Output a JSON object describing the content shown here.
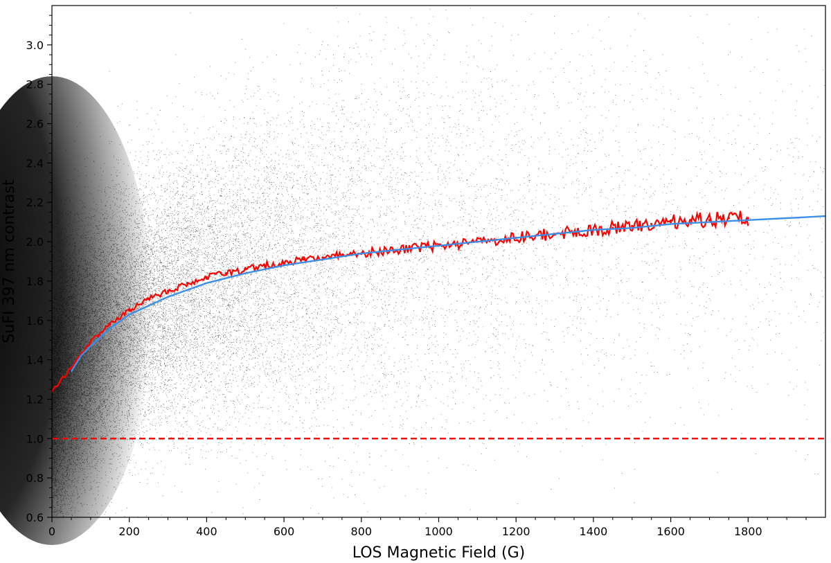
{
  "chart_data": {
    "type": "scatter",
    "title": "",
    "xlabel": "LOS Magnetic Field (G)",
    "ylabel": "SuFI 397 nm contrast",
    "xlim": [
      0,
      2000
    ],
    "ylim": [
      0.6,
      3.2
    ],
    "xticks": [
      0,
      200,
      400,
      600,
      800,
      1000,
      1200,
      1400,
      1600,
      1800
    ],
    "xtick_labels": [
      "0",
      "200",
      "400",
      "600",
      "800",
      "1000",
      "1200",
      "1400",
      "1600",
      "1800"
    ],
    "yticks": [
      0.6,
      0.8,
      1.0,
      1.2,
      1.4,
      1.6,
      1.8,
      2.0,
      2.2,
      2.4,
      2.6,
      2.8,
      3.0
    ],
    "ytick_labels": [
      "0.6",
      "0.8",
      "1.0",
      "1.2",
      "1.4",
      "1.6",
      "1.8",
      "2.0",
      "2.2",
      "2.4",
      "2.6",
      "2.8",
      "3.0"
    ],
    "grid": false,
    "legend": "none",
    "series": [
      {
        "kind": "scatter-cloud",
        "color": "#000000",
        "density_x": [
          0,
          50,
          100,
          200,
          300,
          400,
          600,
          800,
          1000,
          1200,
          1400,
          1600,
          1800,
          2000
        ],
        "density_weight": [
          10,
          9,
          8,
          6,
          4.5,
          3.4,
          2.2,
          1.5,
          1.05,
          0.75,
          0.55,
          0.42,
          0.32,
          0.25
        ]
      },
      {
        "kind": "binned-mean",
        "color": "#ff0000",
        "x": [
          0,
          50,
          100,
          150,
          200,
          250,
          300,
          350,
          400,
          450,
          500,
          550,
          600,
          650,
          700,
          750,
          800,
          850,
          900,
          950,
          1000,
          1050,
          1100,
          1150,
          1200,
          1250,
          1300,
          1350,
          1400,
          1450,
          1500,
          1550,
          1600,
          1650,
          1700,
          1750,
          1800
        ],
        "y": [
          1.24,
          1.36,
          1.49,
          1.58,
          1.65,
          1.71,
          1.75,
          1.79,
          1.82,
          1.84,
          1.86,
          1.88,
          1.89,
          1.91,
          1.92,
          1.93,
          1.94,
          1.95,
          1.96,
          1.97,
          1.98,
          1.99,
          2.0,
          2.01,
          2.02,
          2.03,
          2.04,
          2.05,
          2.06,
          2.07,
          2.08,
          2.09,
          2.1,
          2.11,
          2.11,
          2.12,
          2.12
        ]
      },
      {
        "kind": "fit",
        "color": "#3b8fe8",
        "x": [
          50,
          75,
          100,
          150,
          200,
          300,
          400,
          500,
          600,
          700,
          800,
          900,
          1000,
          1100,
          1200,
          1300,
          1400,
          1500,
          1600,
          1700,
          1800,
          1900,
          2000
        ],
        "y": [
          1.34,
          1.42,
          1.47,
          1.56,
          1.63,
          1.72,
          1.79,
          1.84,
          1.88,
          1.91,
          1.94,
          1.96,
          1.98,
          2.0,
          2.02,
          2.04,
          2.06,
          2.07,
          2.09,
          2.1,
          2.11,
          2.12,
          2.13
        ]
      },
      {
        "kind": "reference-line",
        "color": "#ff0000",
        "y_value": 1.0,
        "style": "dashed"
      }
    ]
  }
}
